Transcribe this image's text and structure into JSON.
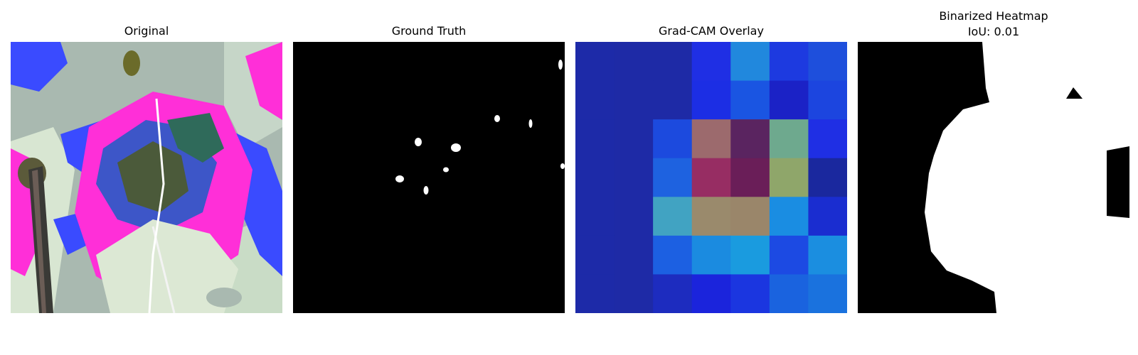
{
  "figure": {
    "panels": [
      {
        "title": "Original"
      },
      {
        "title": "Ground Truth"
      },
      {
        "title": "Grad-CAM Overlay"
      },
      {
        "title_line1": "Binarized Heatmap",
        "title_line2": "IoU: 0.01"
      }
    ]
  },
  "gradcam": {
    "grid_rows": 7,
    "grid_cols": 7,
    "colors": [
      [
        "#1d2aa8",
        "#1e2aa6",
        "#1e2aa6",
        "#1f2fe4",
        "#2188dd",
        "#1d3ae0",
        "#1e4fdc"
      ],
      [
        "#1d2aa8",
        "#1e2aa6",
        "#1e2aa6",
        "#1c2ee4",
        "#1a55e2",
        "#1b22c6",
        "#1c45df"
      ],
      [
        "#1d2aa8",
        "#1e2aa6",
        "#1c4ade",
        "#9c6a6d",
        "#5a2460",
        "#6ea98e",
        "#1f2fe4"
      ],
      [
        "#1d2aa8",
        "#1e2aa6",
        "#1e62e0",
        "#972d63",
        "#6a1e58",
        "#8fa66a",
        "#1a289e"
      ],
      [
        "#1d2aa8",
        "#1e2aa6",
        "#41a3c2",
        "#9a8a6c",
        "#9a866a",
        "#1a8de2",
        "#1a2dd0"
      ],
      [
        "#1d2aa8",
        "#1e2aa6",
        "#1c60e2",
        "#1b8be0",
        "#1a9bdf",
        "#1c4ae3",
        "#1b8ee0"
      ],
      [
        "#1d2aa8",
        "#1e2aa6",
        "#1d2cbf",
        "#1b24dc",
        "#1b36e0",
        "#1a63df",
        "#1a72de"
      ]
    ]
  },
  "colors": {
    "mask_foreground": "#ffffff",
    "mask_background": "#000000",
    "original_bg": "#a9b9b0",
    "leaf_magenta": "#ff2fd8",
    "leaf_blue": "#3a4bff",
    "leaf_dark": "#4b5a3a",
    "leaf_pale": "#dce8d4"
  }
}
